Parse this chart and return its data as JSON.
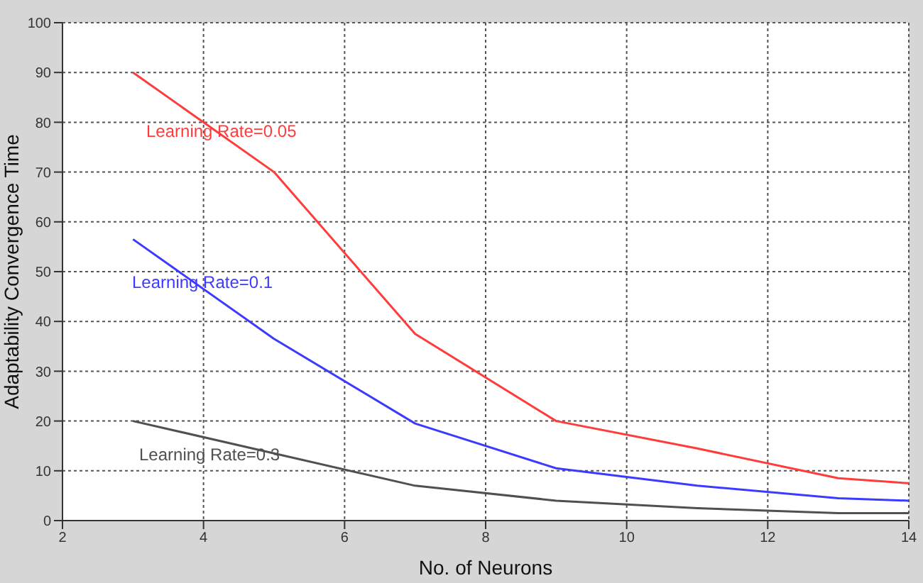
{
  "chart_data": {
    "type": "line",
    "xlabel": "No. of Neurons",
    "ylabel": "Adaptability Convergence Time",
    "x": [
      3,
      5,
      7,
      9,
      11,
      13,
      14
    ],
    "series": [
      {
        "name": "Learning Rate=0.05",
        "color": "#ff3b3b",
        "values": [
          90,
          70,
          37.5,
          20,
          14.5,
          8.5,
          7.5
        ]
      },
      {
        "name": "Learning Rate=0.1",
        "color": "#3b3bff",
        "values": [
          56.5,
          36.5,
          19.5,
          10.5,
          7,
          4.5,
          4
        ]
      },
      {
        "name": "Learning Rate=0.3",
        "color": "#505050",
        "values": [
          20,
          13.5,
          7,
          4,
          2.5,
          1.5,
          1.5
        ]
      }
    ],
    "xlim": [
      2,
      14
    ],
    "xticks": [
      2,
      4,
      6,
      8,
      10,
      12,
      14
    ],
    "ylim": [
      0,
      100
    ],
    "yticks": [
      0,
      10,
      20,
      30,
      40,
      50,
      60,
      70,
      80,
      90,
      100
    ],
    "grid": true,
    "marker": "none",
    "line_style": "solid"
  }
}
